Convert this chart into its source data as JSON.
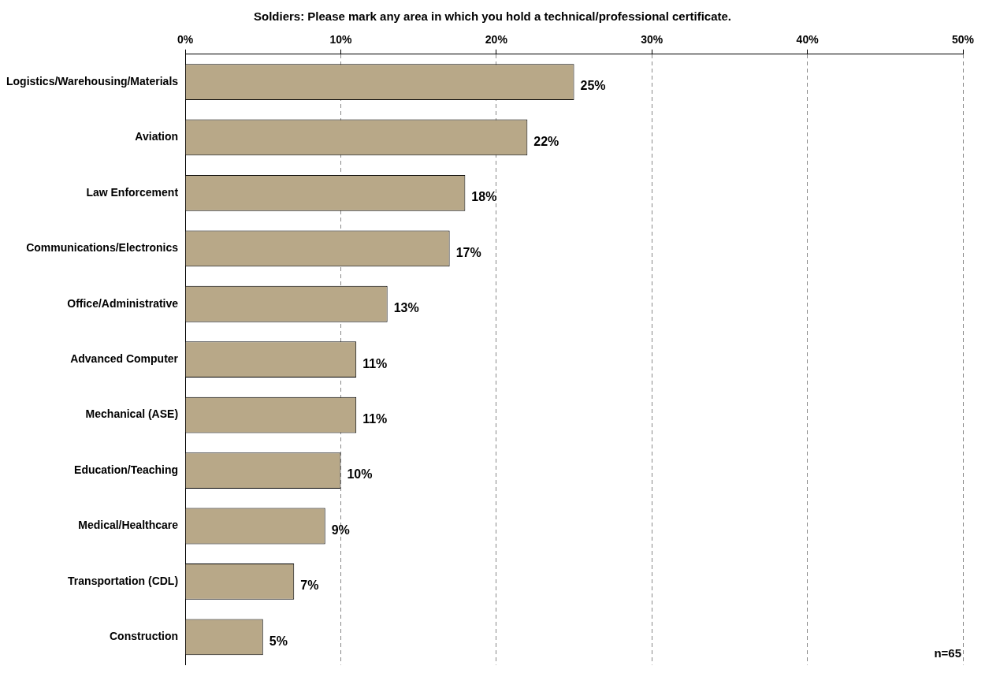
{
  "chart_data": {
    "type": "bar",
    "orientation": "horizontal",
    "title": "Soldiers: Please mark any area in which you hold a technical/professional certificate.",
    "categories": [
      "Logistics/Warehousing/Materials",
      "Aviation",
      "Law Enforcement",
      "Communications/Electronics",
      "Office/Administrative",
      "Advanced Computer",
      "Mechanical (ASE)",
      "Education/Teaching",
      "Medical/Healthcare",
      "Transportation (CDL)",
      "Construction"
    ],
    "values": [
      25,
      22,
      18,
      17,
      13,
      11,
      11,
      10,
      9,
      7,
      5
    ],
    "color": "#b8a888",
    "xlim": [
      0,
      50
    ],
    "xticks": [
      {
        "value": 0,
        "label": "0%"
      },
      {
        "value": 10,
        "label": "10%"
      },
      {
        "value": 20,
        "label": "20%"
      },
      {
        "value": 30,
        "label": "30%"
      },
      {
        "value": 40,
        "label": "40%"
      },
      {
        "value": 50,
        "label": "50%"
      }
    ],
    "value_labels": [
      "25%",
      "22%",
      "18%",
      "17%",
      "13%",
      "11%",
      "11%",
      "10%",
      "9%",
      "7%",
      "5%"
    ],
    "grid": "x",
    "legend": false,
    "annotations": [
      "n=65"
    ]
  }
}
